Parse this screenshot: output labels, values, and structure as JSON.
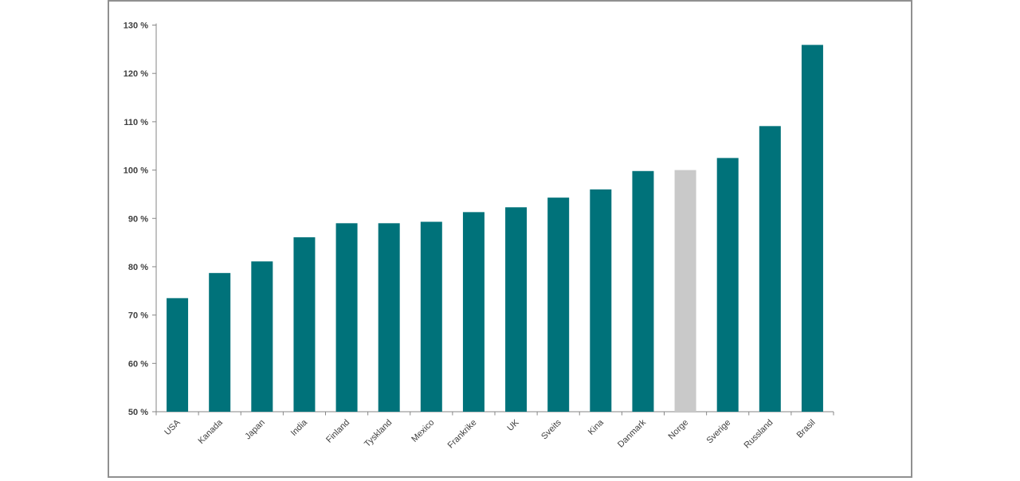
{
  "chart_data": {
    "type": "bar",
    "title": "",
    "unit": "%",
    "categories": [
      "USA",
      "Kanada",
      "Japan",
      "India",
      "Finland",
      "Tyskland",
      "Mexico",
      "Frankrike",
      "UK",
      "Sveits",
      "Kina",
      "Danmark",
      "Norge",
      "Sverige",
      "Russland",
      "Brasil"
    ],
    "values": [
      73.5,
      78.7,
      81.1,
      86.1,
      89.0,
      89.0,
      89.3,
      91.3,
      92.3,
      94.3,
      96.0,
      99.8,
      100.0,
      102.5,
      109.1,
      125.9
    ],
    "highlighted_category": "Norge",
    "ylim": [
      50,
      130
    ],
    "ytick_step": 10,
    "ytick_labels": [
      "50 %",
      "60 %",
      "70 %",
      "80 %",
      "90 %",
      "100 %",
      "110 %",
      "120 %",
      "130 %"
    ],
    "xlabel": "",
    "ylabel": "",
    "grid": false,
    "legend_position": "none",
    "colors": {
      "bar": "#00727a",
      "highlight_bar": "#c9c9c9",
      "axis": "#868686",
      "tick_label": "#3f3f3f",
      "frame_border": "#909090",
      "background": "#ffffff"
    }
  }
}
